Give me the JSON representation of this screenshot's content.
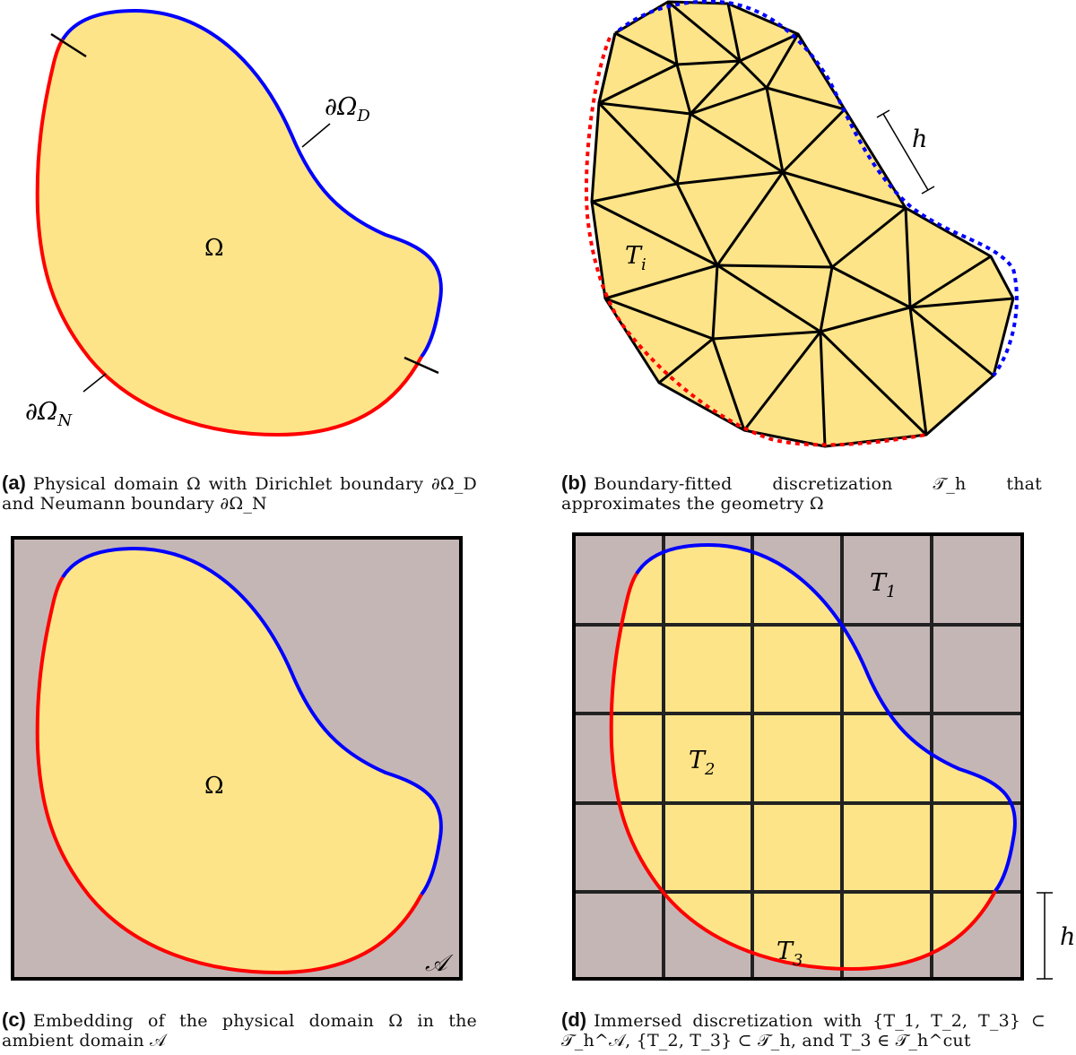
{
  "colors": {
    "domain_fill": "#FDE488",
    "ambient_fill": "#C5B6B6",
    "dirichlet": "#0000FF",
    "neumann": "#FF0000",
    "edges": "#000000"
  },
  "panel_a": {
    "domain_label": "Ω",
    "dirichlet_label": "∂Ω_D",
    "neumann_label": "∂Ω_N",
    "caption_tag": "(a)",
    "caption_text": "Physical domain Ω with Dirichlet boundary ∂Ω_D and Neumann boundary ∂Ω_N"
  },
  "panel_b": {
    "element_label": "T_i",
    "size_label": "h",
    "caption_tag": "(b)",
    "caption_text": "Boundary-fitted discretization 𝒯_h that approximates the geometry Ω"
  },
  "panel_c": {
    "domain_label": "Ω",
    "ambient_label": "𝒜",
    "caption_tag": "(c)",
    "caption_text": "Embedding of the physical domain Ω in the ambient domain 𝒜"
  },
  "panel_d": {
    "cell_labels": [
      "T_1",
      "T_2",
      "T_3"
    ],
    "size_label": "h",
    "caption_tag": "(d)",
    "caption_text": "Immersed discretization with {T_1, T_2, T_3} ⊂ 𝒯_h^𝒜, {T_2, T_3} ⊂ 𝒯_h, and T_3 ∈ 𝒯_h^cut"
  }
}
